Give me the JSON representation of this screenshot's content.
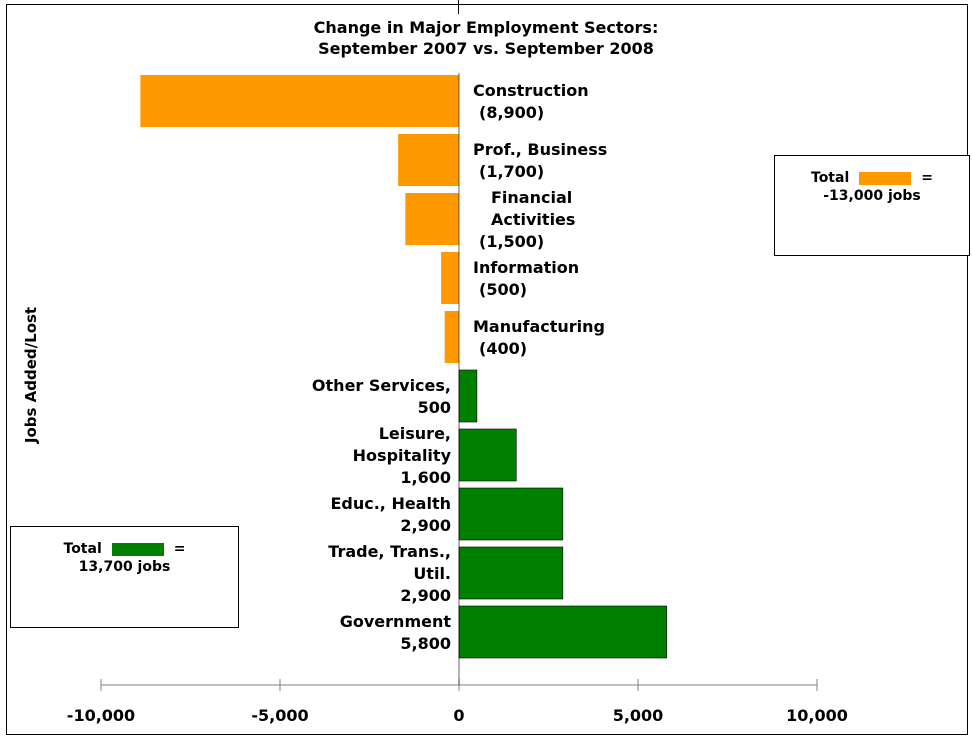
{
  "colors": {
    "negative": "#ff9900",
    "positive": "#008000",
    "axis": "#808080",
    "text": "#000000"
  },
  "legend_lost": {
    "total_label": "Total",
    "equals": "=",
    "value": "-13,000 jobs"
  },
  "legend_added": {
    "total_label": "Total",
    "equals": "=",
    "value": "13,700 jobs"
  },
  "chart_data": {
    "type": "bar",
    "orientation": "horizontal",
    "title": [
      "Change in Major Employment Sectors:",
      "September 2007 vs. September 2008"
    ],
    "ylabel": "Jobs Added/Lost",
    "xlabel": "",
    "xlim": [
      -10000,
      10000
    ],
    "xticks": [
      -10000,
      -5000,
      0,
      5000,
      10000
    ],
    "xtick_labels": [
      "-10,000",
      "-5,000",
      "0",
      "5,000",
      "10,000"
    ],
    "grid": false,
    "categories": [
      {
        "label_lines": [
          "Construction",
          "(8,900)"
        ],
        "value": -8900
      },
      {
        "label_lines": [
          "Prof., Business",
          "(1,700)"
        ],
        "value": -1700
      },
      {
        "label_lines": [
          "Financial",
          "Activities",
          "(1,500)"
        ],
        "value": -1500
      },
      {
        "label_lines": [
          "Information",
          "(500)"
        ],
        "value": -500
      },
      {
        "label_lines": [
          "Manufacturing",
          "(400)"
        ],
        "value": -400
      },
      {
        "label_lines": [
          "Other Services,",
          "500"
        ],
        "value": 500
      },
      {
        "label_lines": [
          "Leisure,",
          "Hospitality",
          "1,600"
        ],
        "value": 1600
      },
      {
        "label_lines": [
          "Educ., Health",
          "2,900"
        ],
        "value": 2900
      },
      {
        "label_lines": [
          "Trade, Trans.,",
          "Util.",
          "2,900"
        ],
        "value": 2900
      },
      {
        "label_lines": [
          "Government",
          "5,800"
        ],
        "value": 5800
      }
    ]
  }
}
